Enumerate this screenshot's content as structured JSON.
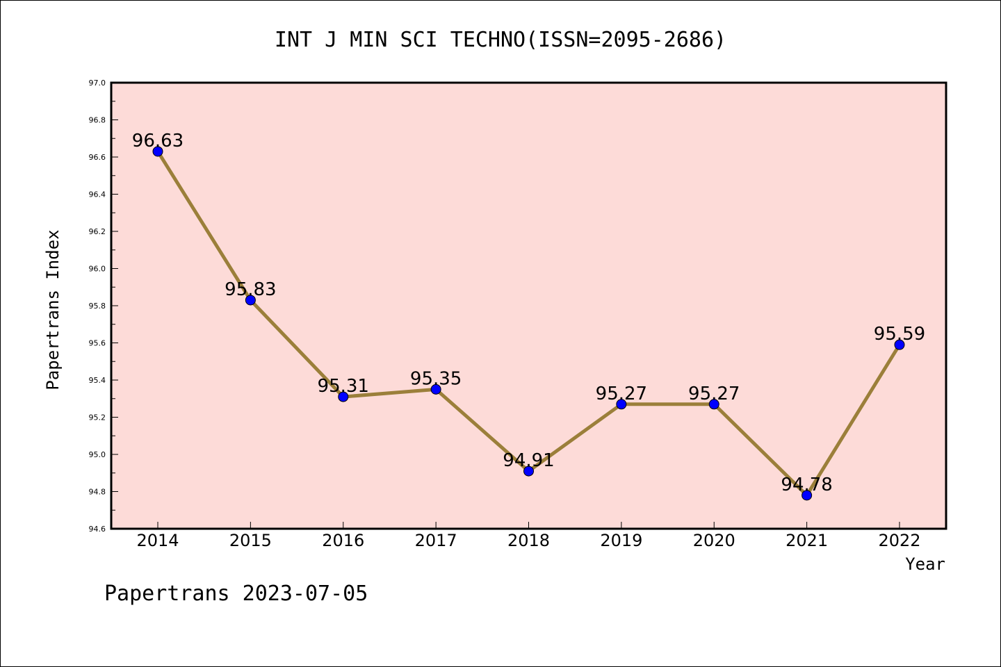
{
  "chart_data": {
    "type": "line",
    "title": "INT J MIN SCI TECHNO(ISSN=2095-2686)",
    "xlabel": "Year",
    "ylabel": "Papertrans Index",
    "categories": [
      "2014",
      "2015",
      "2016",
      "2017",
      "2018",
      "2019",
      "2020",
      "2021",
      "2022"
    ],
    "series": [
      {
        "values": [
          96.63,
          95.83,
          95.31,
          95.35,
          94.91,
          95.27,
          95.27,
          94.78,
          95.59
        ],
        "labels": [
          "96.63",
          "95.83",
          "95.31",
          "95.35",
          "94.91",
          "95.27",
          "95.27",
          "94.78",
          "95.59"
        ]
      }
    ],
    "ylim": [
      94.6,
      97.0
    ],
    "yticks": [
      "94.6",
      "94.8",
      "95.0",
      "95.2",
      "95.4",
      "95.6",
      "95.8",
      "96.0",
      "96.2",
      "96.4",
      "96.6",
      "96.8",
      "97.0"
    ],
    "grid": false,
    "colors": {
      "plot_background": "#fddbd8",
      "line": "#9b7f3a",
      "marker": "#0000ff"
    }
  },
  "footer": "Papertrans 2023-07-05"
}
